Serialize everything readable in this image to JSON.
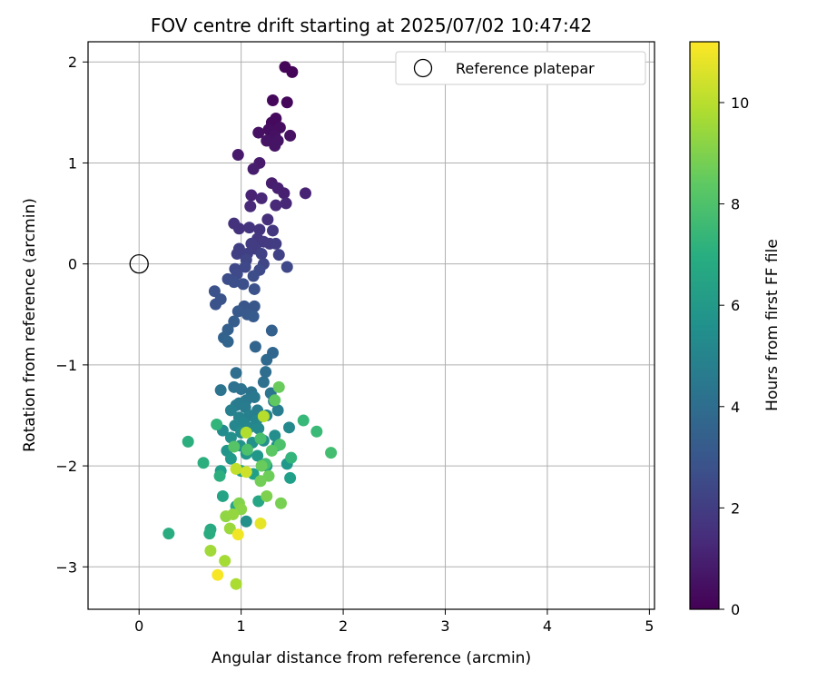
{
  "chart_data": {
    "type": "scatter",
    "title": "FOV centre drift starting at 2025/07/02 10:47:42",
    "xlabel": "Angular distance from reference (arcmin)",
    "ylabel": "Rotation from reference (arcmin)",
    "xlim": [
      -0.5,
      5.05
    ],
    "ylim": [
      -3.42,
      2.2
    ],
    "xticks": [
      0,
      1,
      2,
      3,
      4,
      5
    ],
    "xtick_labels": [
      "0",
      "1",
      "2",
      "3",
      "4",
      "5"
    ],
    "yticks": [
      -3,
      -2,
      -1,
      0,
      1,
      2
    ],
    "ytick_labels": [
      "−3",
      "−2",
      "−1",
      "0",
      "1",
      "2"
    ],
    "grid": true,
    "legend": {
      "position": "top-right",
      "entries": [
        "Reference platepar"
      ]
    },
    "reference": {
      "x": 0,
      "y": 0,
      "label": "Reference platepar"
    },
    "colorbar": {
      "label": "Hours from first FF file",
      "colormap": "viridis",
      "range": [
        0,
        11.2
      ],
      "ticks": [
        0,
        2,
        4,
        6,
        8,
        10
      ],
      "tick_labels": [
        "0",
        "2",
        "4",
        "6",
        "8",
        "10"
      ]
    },
    "points": [
      {
        "x": 1.43,
        "y": 1.95,
        "c": 0.1
      },
      {
        "x": 1.5,
        "y": 1.9,
        "c": 0.1
      },
      {
        "x": 1.31,
        "y": 1.62,
        "c": 0.2
      },
      {
        "x": 1.45,
        "y": 1.6,
        "c": 0.2
      },
      {
        "x": 1.3,
        "y": 1.4,
        "c": 0.3
      },
      {
        "x": 1.34,
        "y": 1.44,
        "c": 0.3
      },
      {
        "x": 1.27,
        "y": 1.33,
        "c": 0.4
      },
      {
        "x": 1.38,
        "y": 1.35,
        "c": 0.4
      },
      {
        "x": 1.17,
        "y": 1.3,
        "c": 0.5
      },
      {
        "x": 1.33,
        "y": 1.27,
        "c": 0.5
      },
      {
        "x": 1.48,
        "y": 1.27,
        "c": 0.5
      },
      {
        "x": 1.25,
        "y": 1.22,
        "c": 0.6
      },
      {
        "x": 1.36,
        "y": 1.22,
        "c": 0.6
      },
      {
        "x": 1.33,
        "y": 1.17,
        "c": 0.6
      },
      {
        "x": 0.97,
        "y": 1.08,
        "c": 0.8
      },
      {
        "x": 1.18,
        "y": 1.0,
        "c": 0.8
      },
      {
        "x": 1.12,
        "y": 0.94,
        "c": 0.9
      },
      {
        "x": 1.3,
        "y": 0.8,
        "c": 0.9
      },
      {
        "x": 1.36,
        "y": 0.75,
        "c": 1.0
      },
      {
        "x": 1.42,
        "y": 0.7,
        "c": 1.0
      },
      {
        "x": 1.63,
        "y": 0.7,
        "c": 1.1
      },
      {
        "x": 1.1,
        "y": 0.68,
        "c": 1.1
      },
      {
        "x": 1.2,
        "y": 0.65,
        "c": 1.2
      },
      {
        "x": 1.44,
        "y": 0.6,
        "c": 1.2
      },
      {
        "x": 1.34,
        "y": 0.58,
        "c": 1.3
      },
      {
        "x": 1.09,
        "y": 0.57,
        "c": 1.3
      },
      {
        "x": 1.26,
        "y": 0.44,
        "c": 1.5
      },
      {
        "x": 0.93,
        "y": 0.4,
        "c": 1.6
      },
      {
        "x": 0.98,
        "y": 0.35,
        "c": 1.6
      },
      {
        "x": 1.08,
        "y": 0.36,
        "c": 1.7
      },
      {
        "x": 1.18,
        "y": 0.34,
        "c": 1.7
      },
      {
        "x": 1.31,
        "y": 0.33,
        "c": 1.8
      },
      {
        "x": 1.16,
        "y": 0.25,
        "c": 1.8
      },
      {
        "x": 1.22,
        "y": 0.22,
        "c": 1.9
      },
      {
        "x": 1.28,
        "y": 0.2,
        "c": 1.9
      },
      {
        "x": 1.34,
        "y": 0.2,
        "c": 2.0
      },
      {
        "x": 1.1,
        "y": 0.2,
        "c": 2.0
      },
      {
        "x": 1.14,
        "y": 0.15,
        "c": 2.0
      },
      {
        "x": 0.98,
        "y": 0.15,
        "c": 2.1
      },
      {
        "x": 0.96,
        "y": 0.1,
        "c": 2.1
      },
      {
        "x": 1.06,
        "y": 0.1,
        "c": 2.1
      },
      {
        "x": 1.2,
        "y": 0.1,
        "c": 2.2
      },
      {
        "x": 1.37,
        "y": 0.09,
        "c": 2.2
      },
      {
        "x": 1.05,
        "y": 0.04,
        "c": 2.3
      },
      {
        "x": 1.22,
        "y": 0.0,
        "c": 2.3
      },
      {
        "x": 1.45,
        "y": -0.03,
        "c": 2.4
      },
      {
        "x": 0.94,
        "y": -0.05,
        "c": 2.4
      },
      {
        "x": 1.04,
        "y": -0.03,
        "c": 2.4
      },
      {
        "x": 1.18,
        "y": -0.06,
        "c": 2.5
      },
      {
        "x": 0.96,
        "y": -0.1,
        "c": 2.5
      },
      {
        "x": 1.12,
        "y": -0.12,
        "c": 2.6
      },
      {
        "x": 0.87,
        "y": -0.15,
        "c": 2.6
      },
      {
        "x": 0.93,
        "y": -0.18,
        "c": 2.7
      },
      {
        "x": 1.02,
        "y": -0.2,
        "c": 2.7
      },
      {
        "x": 1.13,
        "y": -0.25,
        "c": 2.8
      },
      {
        "x": 0.74,
        "y": -0.27,
        "c": 2.8
      },
      {
        "x": 0.8,
        "y": -0.35,
        "c": 2.9
      },
      {
        "x": 0.75,
        "y": -0.4,
        "c": 2.9
      },
      {
        "x": 1.03,
        "y": -0.42,
        "c": 3.0
      },
      {
        "x": 1.13,
        "y": -0.42,
        "c": 3.0
      },
      {
        "x": 0.97,
        "y": -0.47,
        "c": 3.1
      },
      {
        "x": 1.06,
        "y": -0.5,
        "c": 3.1
      },
      {
        "x": 1.12,
        "y": -0.52,
        "c": 3.2
      },
      {
        "x": 0.93,
        "y": -0.57,
        "c": 3.3
      },
      {
        "x": 0.87,
        "y": -0.65,
        "c": 3.4
      },
      {
        "x": 1.3,
        "y": -0.66,
        "c": 3.4
      },
      {
        "x": 0.83,
        "y": -0.73,
        "c": 3.5
      },
      {
        "x": 0.87,
        "y": -0.77,
        "c": 3.6
      },
      {
        "x": 1.14,
        "y": -0.82,
        "c": 3.6
      },
      {
        "x": 1.31,
        "y": -0.88,
        "c": 3.7
      },
      {
        "x": 1.25,
        "y": -0.95,
        "c": 3.8
      },
      {
        "x": 0.95,
        "y": -1.08,
        "c": 4.0
      },
      {
        "x": 1.24,
        "y": -1.07,
        "c": 4.0
      },
      {
        "x": 1.22,
        "y": -1.17,
        "c": 4.1
      },
      {
        "x": 0.93,
        "y": -1.22,
        "c": 4.2
      },
      {
        "x": 1.0,
        "y": -1.24,
        "c": 4.2
      },
      {
        "x": 0.8,
        "y": -1.25,
        "c": 4.3
      },
      {
        "x": 1.1,
        "y": -1.27,
        "c": 4.3
      },
      {
        "x": 1.29,
        "y": -1.28,
        "c": 4.4
      },
      {
        "x": 1.13,
        "y": -1.32,
        "c": 4.5
      },
      {
        "x": 1.05,
        "y": -1.35,
        "c": 4.5
      },
      {
        "x": 0.98,
        "y": -1.38,
        "c": 4.6
      },
      {
        "x": 1.32,
        "y": -1.36,
        "c": 4.6
      },
      {
        "x": 0.95,
        "y": -1.4,
        "c": 4.7
      },
      {
        "x": 1.04,
        "y": -1.42,
        "c": 4.7
      },
      {
        "x": 1.16,
        "y": -1.45,
        "c": 4.8
      },
      {
        "x": 1.36,
        "y": -1.45,
        "c": 4.8
      },
      {
        "x": 0.9,
        "y": -1.45,
        "c": 4.9
      },
      {
        "x": 1.08,
        "y": -1.5,
        "c": 4.9
      },
      {
        "x": 0.98,
        "y": -1.52,
        "c": 5.0
      },
      {
        "x": 1.25,
        "y": -1.5,
        "c": 5.0
      },
      {
        "x": 1.15,
        "y": -1.55,
        "c": 5.1
      },
      {
        "x": 1.03,
        "y": -1.58,
        "c": 5.1
      },
      {
        "x": 0.94,
        "y": -1.6,
        "c": 5.2
      },
      {
        "x": 1.08,
        "y": -1.62,
        "c": 5.2
      },
      {
        "x": 1.47,
        "y": -1.62,
        "c": 5.3
      },
      {
        "x": 1.17,
        "y": -1.63,
        "c": 5.3
      },
      {
        "x": 0.82,
        "y": -1.65,
        "c": 5.4
      },
      {
        "x": 1.0,
        "y": -1.67,
        "c": 5.4
      },
      {
        "x": 1.33,
        "y": -1.7,
        "c": 5.5
      },
      {
        "x": 0.9,
        "y": -1.72,
        "c": 5.6
      },
      {
        "x": 1.22,
        "y": -1.75,
        "c": 5.6
      },
      {
        "x": 1.11,
        "y": -1.77,
        "c": 5.7
      },
      {
        "x": 0.99,
        "y": -1.8,
        "c": 5.7
      },
      {
        "x": 1.35,
        "y": -1.8,
        "c": 5.8
      },
      {
        "x": 0.86,
        "y": -1.85,
        "c": 5.8
      },
      {
        "x": 1.05,
        "y": -1.88,
        "c": 5.9
      },
      {
        "x": 1.16,
        "y": -1.9,
        "c": 5.9
      },
      {
        "x": 0.9,
        "y": -1.93,
        "c": 6.0
      },
      {
        "x": 1.45,
        "y": -1.98,
        "c": 6.0
      },
      {
        "x": 1.25,
        "y": -2.0,
        "c": 6.1
      },
      {
        "x": 1.0,
        "y": -2.05,
        "c": 6.2
      },
      {
        "x": 0.8,
        "y": -2.05,
        "c": 6.2
      },
      {
        "x": 1.12,
        "y": -2.08,
        "c": 6.3
      },
      {
        "x": 1.48,
        "y": -2.12,
        "c": 6.3
      },
      {
        "x": 0.82,
        "y": -2.3,
        "c": 6.5
      },
      {
        "x": 1.17,
        "y": -2.35,
        "c": 6.6
      },
      {
        "x": 0.95,
        "y": -2.4,
        "c": 6.6
      },
      {
        "x": 0.7,
        "y": -2.63,
        "c": 6.8
      },
      {
        "x": 0.29,
        "y": -2.67,
        "c": 6.9
      },
      {
        "x": 0.69,
        "y": -2.67,
        "c": 6.9
      },
      {
        "x": 1.05,
        "y": -2.55,
        "c": 5.6
      },
      {
        "x": 0.48,
        "y": -1.76,
        "c": 7.0
      },
      {
        "x": 0.63,
        "y": -1.97,
        "c": 7.0
      },
      {
        "x": 0.79,
        "y": -2.1,
        "c": 7.0
      },
      {
        "x": 0.76,
        "y": -1.59,
        "c": 7.3
      },
      {
        "x": 1.49,
        "y": -1.92,
        "c": 7.3
      },
      {
        "x": 1.61,
        "y": -1.55,
        "c": 7.5
      },
      {
        "x": 1.74,
        "y": -1.66,
        "c": 7.6
      },
      {
        "x": 1.88,
        "y": -1.87,
        "c": 7.8
      },
      {
        "x": 1.24,
        "y": -1.98,
        "c": 7.8
      },
      {
        "x": 1.19,
        "y": -1.73,
        "c": 7.9
      },
      {
        "x": 1.38,
        "y": -1.79,
        "c": 8.0
      },
      {
        "x": 1.06,
        "y": -1.84,
        "c": 8.0
      },
      {
        "x": 0.93,
        "y": -1.81,
        "c": 8.2
      },
      {
        "x": 1.3,
        "y": -1.85,
        "c": 8.3
      },
      {
        "x": 1.33,
        "y": -1.35,
        "c": 8.4
      },
      {
        "x": 1.37,
        "y": -1.22,
        "c": 8.6
      },
      {
        "x": 1.2,
        "y": -2.0,
        "c": 8.6
      },
      {
        "x": 1.27,
        "y": -2.1,
        "c": 8.7
      },
      {
        "x": 1.19,
        "y": -2.15,
        "c": 8.8
      },
      {
        "x": 1.39,
        "y": -2.37,
        "c": 8.9
      },
      {
        "x": 1.25,
        "y": -2.3,
        "c": 9.0
      },
      {
        "x": 0.98,
        "y": -2.37,
        "c": 9.1
      },
      {
        "x": 1.0,
        "y": -2.43,
        "c": 9.2
      },
      {
        "x": 0.85,
        "y": -2.5,
        "c": 9.3
      },
      {
        "x": 0.92,
        "y": -2.48,
        "c": 9.4
      },
      {
        "x": 0.89,
        "y": -2.62,
        "c": 9.5
      },
      {
        "x": 0.7,
        "y": -2.84,
        "c": 9.6
      },
      {
        "x": 0.84,
        "y": -2.94,
        "c": 9.7
      },
      {
        "x": 0.95,
        "y": -3.17,
        "c": 9.8
      },
      {
        "x": 1.05,
        "y": -1.67,
        "c": 9.9
      },
      {
        "x": 1.22,
        "y": -1.51,
        "c": 10.0
      },
      {
        "x": 0.95,
        "y": -2.03,
        "c": 10.2
      },
      {
        "x": 1.05,
        "y": -2.06,
        "c": 10.4
      },
      {
        "x": 1.19,
        "y": -2.57,
        "c": 10.8
      },
      {
        "x": 0.97,
        "y": -2.68,
        "c": 11.0
      },
      {
        "x": 0.77,
        "y": -3.08,
        "c": 11.1
      }
    ]
  }
}
